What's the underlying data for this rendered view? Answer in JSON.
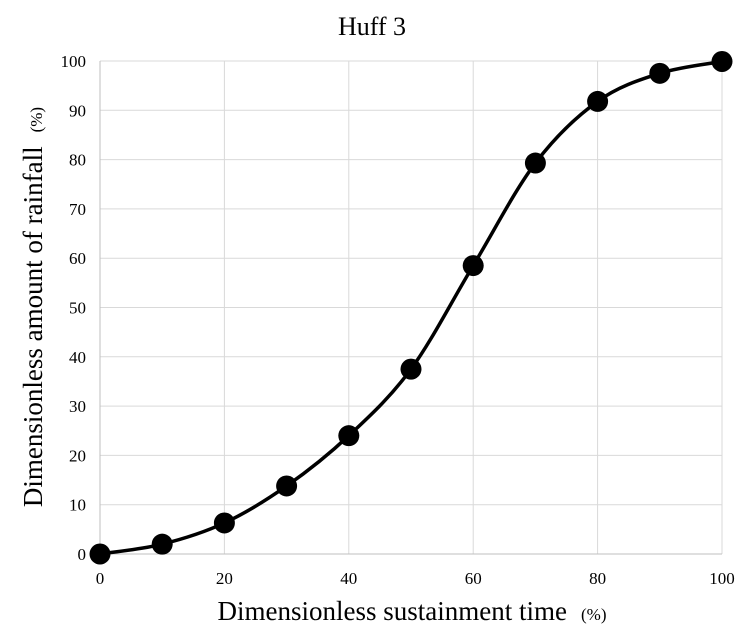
{
  "chart_data": {
    "type": "line",
    "title": "Huff 3",
    "xlabel": "Dimensionless sustainment time",
    "xlabel_unit": "(%)",
    "ylabel": "Dimensionless amount of rainfall",
    "ylabel_unit": "(%)",
    "xlim": [
      0,
      100
    ],
    "ylim": [
      0,
      100
    ],
    "x_ticks": [
      0,
      20,
      40,
      60,
      80,
      100
    ],
    "y_ticks": [
      0,
      10,
      20,
      30,
      40,
      50,
      60,
      70,
      80,
      90,
      100
    ],
    "grid": true,
    "legend": "none",
    "smoothed": true,
    "marker": "circle",
    "line_color": "#000000",
    "marker_color": "#000000",
    "series": [
      {
        "x": [
          0,
          10,
          20,
          30,
          40,
          50,
          60,
          70,
          80,
          90,
          100
        ],
        "values": [
          0,
          2,
          6.3,
          13.8,
          24,
          37.5,
          58.5,
          79.3,
          91.8,
          97.5,
          99.9
        ]
      }
    ]
  }
}
